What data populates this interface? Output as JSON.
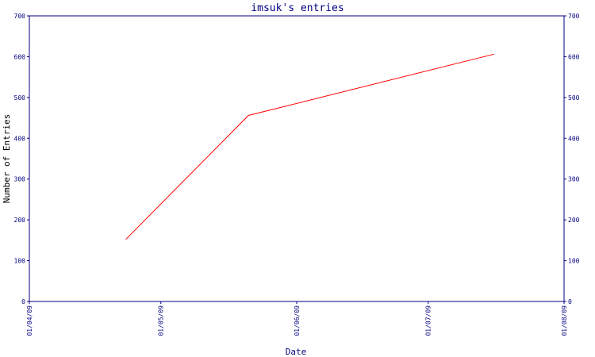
{
  "chart_data": {
    "type": "line",
    "title": "imsuk's entries",
    "xlabel": "Date",
    "ylabel": "Number of Entries",
    "x_tick_labels": [
      "01/04/09",
      "01/05/09",
      "01/06/09",
      "01/07/09",
      "01/08/09"
    ],
    "x_ticks": [
      "2009-04-01",
      "2009-05-01",
      "2009-06-01",
      "2009-07-01",
      "2009-08-01"
    ],
    "xlim": [
      "2009-04-01",
      "2009-08-01"
    ],
    "ylim": [
      0,
      700
    ],
    "y_ticks": [
      0,
      100,
      200,
      300,
      400,
      500,
      600,
      700
    ],
    "series": [
      {
        "x": [
          "2009-04-23",
          "2009-05-21",
          "2009-07-16"
        ],
        "values": [
          152,
          456,
          606
        ]
      }
    ],
    "grid": false,
    "legend": "none",
    "colors": {
      "line": "#ff0000",
      "axis": "#000080",
      "background": "#ffffff"
    }
  }
}
